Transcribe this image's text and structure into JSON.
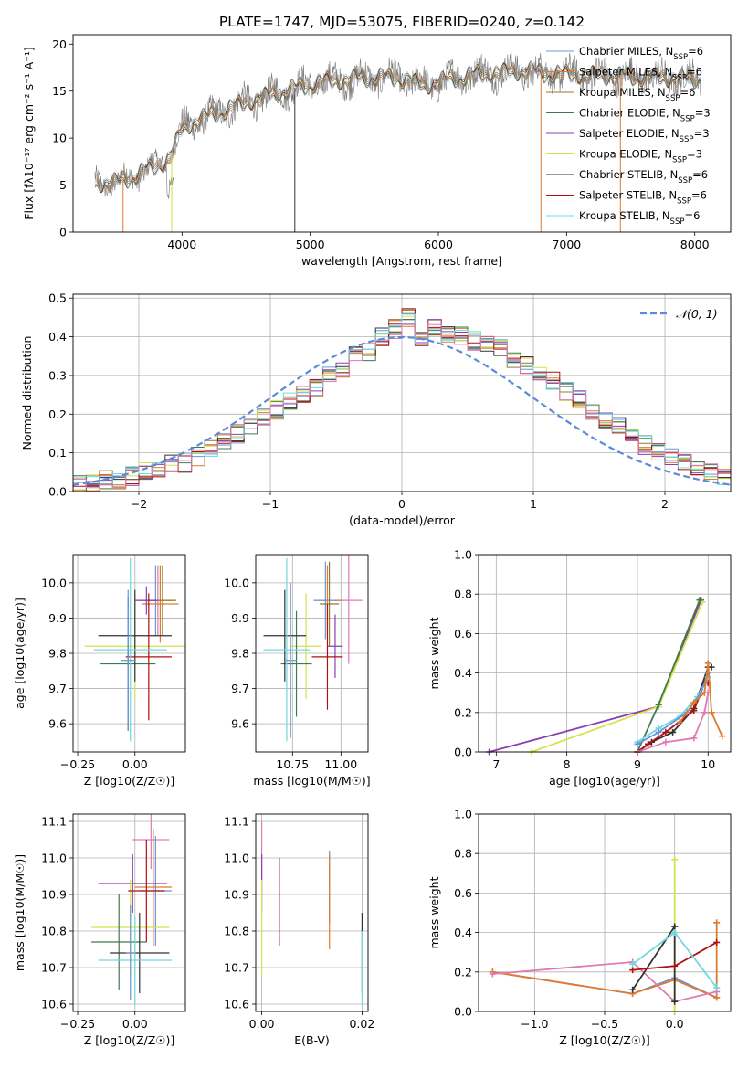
{
  "figure_title": "PLATE=1747, MJD=53075, FIBERID=0240, z=0.142",
  "colors": {
    "chabrier_miles": "#6b94d8",
    "salpeter_miles": "#e07a2e",
    "kroupa_miles": "#9a7a2a",
    "chabrier_elodie": "#3f7a4e",
    "salpeter_elodie": "#8a3fb0",
    "kroupa_elodie": "#d6e24a",
    "chabrier_stelib": "#333333",
    "salpeter_stelib": "#b01010",
    "kroupa_stelib": "#6fd8e0",
    "pink": "#e07ab0",
    "normal": "#5b8bd6",
    "grid": "#b0b0b0"
  },
  "chart_data": [
    {
      "type": "line",
      "title": "PLATE=1747, MJD=53075, FIBERID=0240, z=0.142",
      "xlabel": "wavelength [Angstrom, rest frame]",
      "ylabel": "Flux [fλ10⁻¹⁷ erg cm⁻² s⁻¹ A⁻¹]",
      "xlim": [
        3150,
        8280
      ],
      "ylim": [
        0,
        21
      ],
      "xticks": [
        4000,
        5000,
        6000,
        7000,
        8000
      ],
      "yticks": [
        0,
        5,
        10,
        15,
        20
      ],
      "grid": false,
      "legend_position": "upper-right",
      "observed_color": "#7a7a7a",
      "continuum": {
        "x": [
          3320,
          3500,
          3600,
          3700,
          3800,
          3900,
          4000,
          4100,
          4300,
          4500,
          4700,
          4900,
          5100,
          5300,
          5500,
          5700,
          5900,
          6100,
          6300,
          6500,
          6700,
          6800,
          7000,
          7400,
          7800,
          8050
        ],
        "y": [
          5.2,
          5.3,
          5.8,
          6.5,
          7.0,
          7.8,
          11.0,
          11.8,
          12.8,
          13.8,
          14.6,
          15.4,
          16.0,
          16.2,
          16.5,
          16.4,
          15.6,
          16.3,
          16.8,
          17.0,
          17.2,
          16.9,
          16.8,
          16.6,
          16.4,
          16.3
        ]
      },
      "series": [
        {
          "name": "Chabrier MILES, N_SSP=6",
          "color_key": "chabrier_miles"
        },
        {
          "name": "Salpeter MILES, N_SSP=6",
          "color_key": "salpeter_miles"
        },
        {
          "name": "Kroupa MILES, N_SSP=6",
          "color_key": "kroupa_miles"
        },
        {
          "name": "Chabrier ELODIE, N_SSP=3",
          "color_key": "chabrier_elodie"
        },
        {
          "name": "Salpeter ELODIE, N_SSP=3",
          "color_key": "salpeter_elodie"
        },
        {
          "name": "Kroupa ELODIE, N_SSP=3",
          "color_key": "kroupa_elodie"
        },
        {
          "name": "Chabrier STELIB, N_SSP=6",
          "color_key": "chabrier_stelib"
        },
        {
          "name": "Salpeter STELIB, N_SSP=6",
          "color_key": "salpeter_stelib"
        },
        {
          "name": "Kroupa STELIB, N_SSP=6",
          "color_key": "kroupa_stelib"
        }
      ]
    },
    {
      "type": "line",
      "xlabel": "(data-model)/error",
      "ylabel": "Normed distribution",
      "xlim": [
        -2.5,
        2.5
      ],
      "ylim": [
        0,
        0.51
      ],
      "xticks": [
        -2,
        -1,
        0,
        1,
        2
      ],
      "yticks": [
        0.0,
        0.1,
        0.2,
        0.3,
        0.4,
        0.5
      ],
      "grid": true,
      "legend_position": "upper-right",
      "normal_label": "𝒩(0, 1)",
      "bin_start": -2.5,
      "bin_width": 0.1,
      "histogram_reference": [
        0.02,
        0.025,
        0.03,
        0.03,
        0.04,
        0.05,
        0.06,
        0.07,
        0.075,
        0.09,
        0.11,
        0.13,
        0.15,
        0.17,
        0.19,
        0.21,
        0.23,
        0.25,
        0.27,
        0.3,
        0.32,
        0.35,
        0.36,
        0.4,
        0.42,
        0.45,
        0.4,
        0.42,
        0.41,
        0.4,
        0.39,
        0.38,
        0.37,
        0.34,
        0.33,
        0.31,
        0.29,
        0.26,
        0.24,
        0.21,
        0.19,
        0.17,
        0.15,
        0.12,
        0.1,
        0.09,
        0.08,
        0.06,
        0.05,
        0.04
      ],
      "histogram_series_colors": [
        "chabrier_miles",
        "salpeter_miles",
        "kroupa_miles",
        "chabrier_elodie",
        "salpeter_elodie",
        "kroupa_elodie",
        "chabrier_stelib",
        "salpeter_stelib",
        "kroupa_stelib",
        "pink"
      ]
    },
    {
      "type": "scatter",
      "xlabel": "Z [log10(Z/Z☉)]",
      "ylabel": "age  [log10(age/yr)]",
      "xlim": [
        -0.27,
        0.22
      ],
      "ylim": [
        9.52,
        10.08
      ],
      "xticks": [
        -0.25,
        0.0
      ],
      "xticklabels": [
        "−0.25",
        "0.00"
      ],
      "yticks": [
        9.6,
        9.7,
        9.8,
        9.9,
        10.0
      ],
      "grid": true,
      "points": [
        {
          "x": 0.1,
          "y": 9.95,
          "xerr": 0.06,
          "yerr": 0.1,
          "color_key": "pink"
        },
        {
          "x": 0.09,
          "y": 9.95,
          "xerr": 0.08,
          "yerr": 0.1,
          "color_key": "chabrier_miles"
        },
        {
          "x": 0.11,
          "y": 9.94,
          "xerr": 0.08,
          "yerr": 0.11,
          "color_key": "salpeter_miles"
        },
        {
          "x": 0.12,
          "y": 9.95,
          "xerr": 0.06,
          "yerr": 0.1,
          "color_key": "kroupa_miles"
        },
        {
          "x": 0.05,
          "y": 9.95,
          "xerr": 0.05,
          "yerr": 0.04,
          "color_key": "salpeter_elodie"
        },
        {
          "x": 0.0,
          "y": 9.82,
          "xerr": 0.22,
          "yerr": 0.15,
          "color_key": "kroupa_elodie"
        },
        {
          "x": -0.03,
          "y": 9.77,
          "xerr": 0.12,
          "yerr": 0.19,
          "color_key": "chabrier_elodie"
        },
        {
          "x": 0.0,
          "y": 9.85,
          "xerr": 0.16,
          "yerr": 0.13,
          "color_key": "chabrier_stelib"
        },
        {
          "x": 0.06,
          "y": 9.79,
          "xerr": 0.1,
          "yerr": 0.18,
          "color_key": "salpeter_stelib"
        },
        {
          "x": -0.02,
          "y": 9.81,
          "xerr": 0.16,
          "yerr": 0.26,
          "color_key": "kroupa_stelib"
        },
        {
          "x": -0.03,
          "y": 9.78,
          "xerr": 0.03,
          "yerr": 0.2,
          "color_key": "chabrier_miles"
        }
      ]
    },
    {
      "type": "scatter",
      "xlabel": "mass [log10(M/M☉)]",
      "xlim": [
        10.56,
        11.14
      ],
      "ylim": [
        9.52,
        10.08
      ],
      "xticks": [
        10.75,
        11.0
      ],
      "xticklabels": [
        "10.75",
        "11.00"
      ],
      "yticks": [
        9.6,
        9.7,
        9.8,
        9.9,
        10.0
      ],
      "grid": true,
      "points": [
        {
          "x": 11.04,
          "y": 9.95,
          "xerr": 0.07,
          "yerr": 0.18,
          "color_key": "pink"
        },
        {
          "x": 10.93,
          "y": 9.95,
          "xerr": 0.07,
          "yerr": 0.1,
          "color_key": "salpeter_miles"
        },
        {
          "x": 10.92,
          "y": 9.95,
          "xerr": 0.06,
          "yerr": 0.11,
          "color_key": "chabrier_miles"
        },
        {
          "x": 10.94,
          "y": 9.94,
          "xerr": 0.05,
          "yerr": 0.12,
          "color_key": "kroupa_miles"
        },
        {
          "x": 10.97,
          "y": 9.82,
          "xerr": 0.04,
          "yerr": 0.09,
          "color_key": "salpeter_elodie"
        },
        {
          "x": 10.82,
          "y": 9.82,
          "xerr": 0.08,
          "yerr": 0.15,
          "color_key": "kroupa_elodie"
        },
        {
          "x": 10.77,
          "y": 9.77,
          "xerr": 0.08,
          "yerr": 0.15,
          "color_key": "chabrier_elodie"
        },
        {
          "x": 10.71,
          "y": 9.85,
          "xerr": 0.11,
          "yerr": 0.13,
          "color_key": "chabrier_stelib"
        },
        {
          "x": 10.93,
          "y": 9.79,
          "xerr": 0.08,
          "yerr": 0.15,
          "color_key": "salpeter_stelib"
        },
        {
          "x": 10.72,
          "y": 9.81,
          "xerr": 0.12,
          "yerr": 0.26,
          "color_key": "kroupa_stelib"
        },
        {
          "x": 10.74,
          "y": 9.78,
          "xerr": 0.03,
          "yerr": 0.22,
          "color_key": "chabrier_miles"
        }
      ]
    },
    {
      "type": "line",
      "xlabel": "age  [log10(age/yr)]",
      "ylabel": "mass weight",
      "xlim": [
        6.75,
        10.32
      ],
      "ylim": [
        0,
        1.0
      ],
      "xticks": [
        7,
        8,
        9,
        10
      ],
      "yticks": [
        0.0,
        0.2,
        0.4,
        0.6,
        0.8,
        1.0
      ],
      "grid": true,
      "series": [
        {
          "color_key": "salpeter_elodie",
          "x": [
            6.9,
            9.3,
            9.9
          ],
          "y": [
            0.0,
            0.23,
            0.77
          ]
        },
        {
          "color_key": "kroupa_elodie",
          "x": [
            7.5,
            9.3,
            9.92
          ],
          "y": [
            0.0,
            0.23,
            0.76
          ]
        },
        {
          "color_key": "chabrier_elodie",
          "x": [
            9.0,
            9.3,
            9.88
          ],
          "y": [
            0.0,
            0.24,
            0.77
          ]
        },
        {
          "color_key": "chabrier_stelib",
          "x": [
            9.0,
            9.2,
            9.5,
            9.8,
            10.0,
            10.05
          ],
          "y": [
            0.0,
            0.05,
            0.1,
            0.22,
            0.43,
            0.43
          ]
        },
        {
          "color_key": "salpeter_stelib",
          "x": [
            9.0,
            9.15,
            9.4,
            9.8,
            9.95,
            10.0
          ],
          "y": [
            0.0,
            0.04,
            0.1,
            0.21,
            0.35,
            0.35
          ]
        },
        {
          "color_key": "kroupa_stelib",
          "x": [
            9.0,
            9.3,
            9.6,
            9.85,
            10.0
          ],
          "y": [
            0.05,
            0.12,
            0.18,
            0.28,
            0.38
          ]
        },
        {
          "color_key": "chabrier_miles",
          "x": [
            9.0,
            9.3,
            9.7,
            9.9,
            10.0
          ],
          "y": [
            0.04,
            0.1,
            0.2,
            0.3,
            0.4
          ]
        },
        {
          "color_key": "pink",
          "x": [
            9.0,
            9.4,
            9.8,
            9.95,
            10.0
          ],
          "y": [
            0.0,
            0.05,
            0.07,
            0.2,
            0.3
          ]
        },
        {
          "color_key": "salpeter_miles",
          "x": [
            9.6,
            9.8,
            9.95,
            10.0,
            10.05,
            10.2
          ],
          "y": [
            0.15,
            0.25,
            0.3,
            0.45,
            0.2,
            0.08
          ]
        }
      ]
    },
    {
      "type": "scatter",
      "xlabel": "Z [log10(Z/Z☉)]",
      "ylabel": "mass [log10(M/M☉)]",
      "xlim": [
        -0.27,
        0.22
      ],
      "ylim": [
        10.58,
        11.12
      ],
      "xticks": [
        -0.25,
        0.0
      ],
      "xticklabels": [
        "−0.25",
        "0.00"
      ],
      "yticks": [
        10.6,
        10.7,
        10.8,
        10.9,
        11.0,
        11.1
      ],
      "grid": true,
      "points": [
        {
          "x": 0.07,
          "y": 11.05,
          "xerr": 0.08,
          "yerr": 0.08,
          "color_key": "pink"
        },
        {
          "x": 0.08,
          "y": 10.92,
          "xerr": 0.08,
          "yerr": 0.16,
          "color_key": "salpeter_miles"
        },
        {
          "x": 0.09,
          "y": 10.91,
          "xerr": 0.07,
          "yerr": 0.15,
          "color_key": "chabrier_miles"
        },
        {
          "x": -0.01,
          "y": 10.93,
          "xerr": 0.15,
          "yerr": 0.08,
          "color_key": "salpeter_elodie"
        },
        {
          "x": -0.02,
          "y": 10.81,
          "xerr": 0.17,
          "yerr": 0.13,
          "color_key": "kroupa_elodie"
        },
        {
          "x": -0.07,
          "y": 10.77,
          "xerr": 0.12,
          "yerr": 0.13,
          "color_key": "chabrier_elodie"
        },
        {
          "x": 0.02,
          "y": 10.74,
          "xerr": 0.13,
          "yerr": 0.11,
          "color_key": "chabrier_stelib"
        },
        {
          "x": 0.05,
          "y": 10.91,
          "xerr": 0.08,
          "yerr": 0.14,
          "color_key": "salpeter_stelib"
        },
        {
          "x": 0.0,
          "y": 10.72,
          "xerr": 0.16,
          "yerr": 0.12,
          "color_key": "kroupa_stelib"
        },
        {
          "x": -0.02,
          "y": 10.74,
          "xerr": 0.02,
          "yerr": 0.13,
          "color_key": "chabrier_miles"
        }
      ]
    },
    {
      "type": "scatter",
      "xlabel": "E(B-V)",
      "xlim": [
        -0.0012,
        0.0212
      ],
      "ylim": [
        10.58,
        11.12
      ],
      "xticks": [
        0.0,
        0.02
      ],
      "xticklabels": [
        "0.00",
        "0.02"
      ],
      "yticks": [
        10.6,
        10.7,
        10.8,
        10.9,
        11.0,
        11.1
      ],
      "grid": true,
      "points": [
        {
          "x": 0.0,
          "y": 11.0,
          "yerr": 0.1,
          "color_key": "pink"
        },
        {
          "x": 0.0,
          "y": 10.93,
          "yerr": 0.08,
          "color_key": "salpeter_elodie"
        },
        {
          "x": 0.0,
          "y": 10.81,
          "yerr": 0.13,
          "color_key": "kroupa_elodie"
        },
        {
          "x": 0.0035,
          "y": 10.88,
          "yerr": 0.12,
          "color_key": "salpeter_stelib"
        },
        {
          "x": 0.0135,
          "y": 10.92,
          "yerr": 0.1,
          "color_key": "chabrier_miles"
        },
        {
          "x": 0.0135,
          "y": 10.88,
          "yerr": 0.13,
          "color_key": "salpeter_miles"
        },
        {
          "x": 0.02,
          "y": 10.74,
          "yerr": 0.11,
          "color_key": "chabrier_stelib"
        },
        {
          "x": 0.02,
          "y": 10.7,
          "yerr": 0.1,
          "color_key": "kroupa_stelib"
        }
      ]
    },
    {
      "type": "line",
      "xlabel": "Z [log10(Z/Z☉)]",
      "ylabel": "mass weight",
      "xlim": [
        -1.4,
        0.4
      ],
      "ylim": [
        0,
        1.0
      ],
      "xticks": [
        -1.0,
        -0.5,
        0.0
      ],
      "xticklabels": [
        "−1.0",
        "−0.5",
        "0.0"
      ],
      "yticks": [
        0.0,
        0.2,
        0.4,
        0.6,
        0.8,
        1.0
      ],
      "grid": true,
      "series": [
        {
          "color_key": "chabrier_miles",
          "x": [
            -1.3,
            -0.3,
            0.0,
            0.3
          ],
          "y": [
            0.2,
            0.09,
            0.17,
            0.07
          ]
        },
        {
          "color_key": "salpeter_miles",
          "x": [
            -1.3,
            -0.3,
            0.0,
            0.3,
            0.3
          ],
          "y": [
            0.2,
            0.09,
            0.16,
            0.07,
            0.45
          ]
        },
        {
          "color_key": "pink",
          "x": [
            -1.3,
            -0.3,
            0.0,
            0.3
          ],
          "y": [
            0.19,
            0.25,
            0.05,
            0.1
          ]
        },
        {
          "color_key": "kroupa_elodie",
          "x": [
            0.0,
            0.0
          ],
          "y": [
            0.0,
            0.77
          ]
        },
        {
          "color_key": "chabrier_stelib",
          "x": [
            -0.3,
            0.0,
            0.0
          ],
          "y": [
            0.11,
            0.43,
            0.05
          ]
        },
        {
          "color_key": "salpeter_stelib",
          "x": [
            -0.3,
            0.0,
            0.3
          ],
          "y": [
            0.21,
            0.23,
            0.35
          ]
        },
        {
          "color_key": "kroupa_stelib",
          "x": [
            -0.3,
            0.0,
            0.3
          ],
          "y": [
            0.24,
            0.4,
            0.12
          ]
        }
      ]
    }
  ]
}
